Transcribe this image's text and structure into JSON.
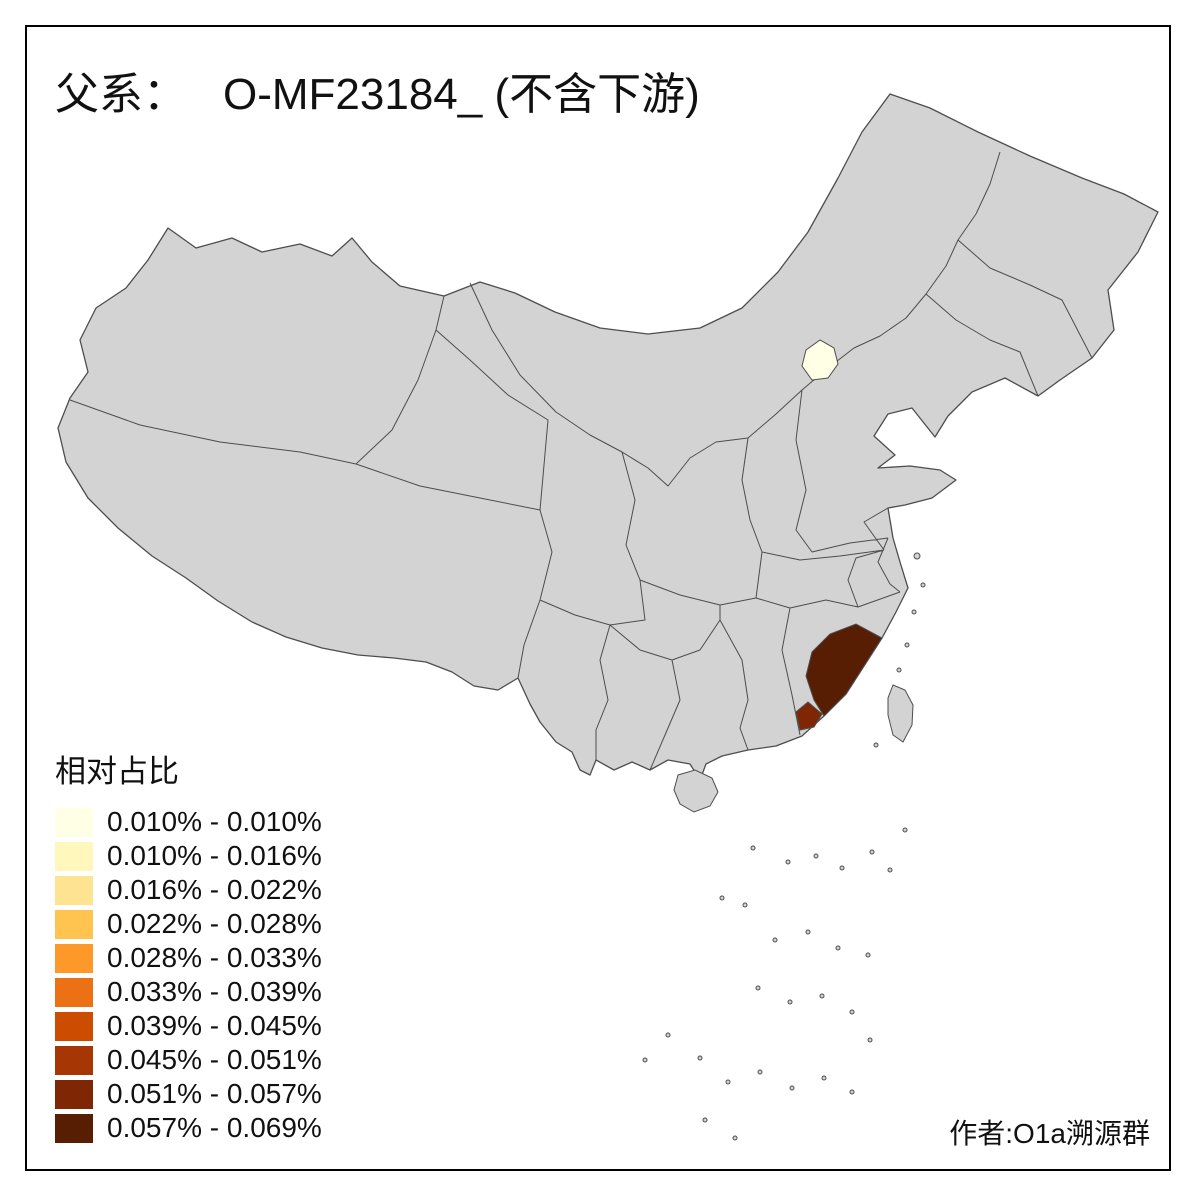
{
  "title": {
    "prefix": "父系：",
    "main": "O-MF23184_ (不含下游)"
  },
  "legend": {
    "title": "相对占比",
    "items": [
      {
        "label": "0.010% - 0.010%",
        "color": "#FFFFE5"
      },
      {
        "label": "0.010% - 0.016%",
        "color": "#FFF7BC"
      },
      {
        "label": "0.016% - 0.022%",
        "color": "#FEE391"
      },
      {
        "label": "0.022% - 0.028%",
        "color": "#FEC44F"
      },
      {
        "label": "0.028% - 0.033%",
        "color": "#FE9929"
      },
      {
        "label": "0.033% - 0.039%",
        "color": "#EC7014"
      },
      {
        "label": "0.039% - 0.045%",
        "color": "#CC4C02"
      },
      {
        "label": "0.045% - 0.051%",
        "color": "#A63603"
      },
      {
        "label": "0.051% - 0.057%",
        "color": "#7F2704"
      },
      {
        "label": "0.057% - 0.069%",
        "color": "#571E04"
      }
    ]
  },
  "credit": "作者:O1a溯源群",
  "map": {
    "base_fill": "#d3d3d3",
    "border_color": "#4d4d4d",
    "regions": [
      {
        "name": "beijing",
        "label": "北京",
        "class_index": 1,
        "color": "#FFFFE5"
      },
      {
        "name": "fujian",
        "label": "福建",
        "class_index": 10,
        "color": "#571E04"
      },
      {
        "name": "east-guangdong",
        "label": "粤东",
        "class_index": 9,
        "color": "#7F2704"
      }
    ]
  }
}
